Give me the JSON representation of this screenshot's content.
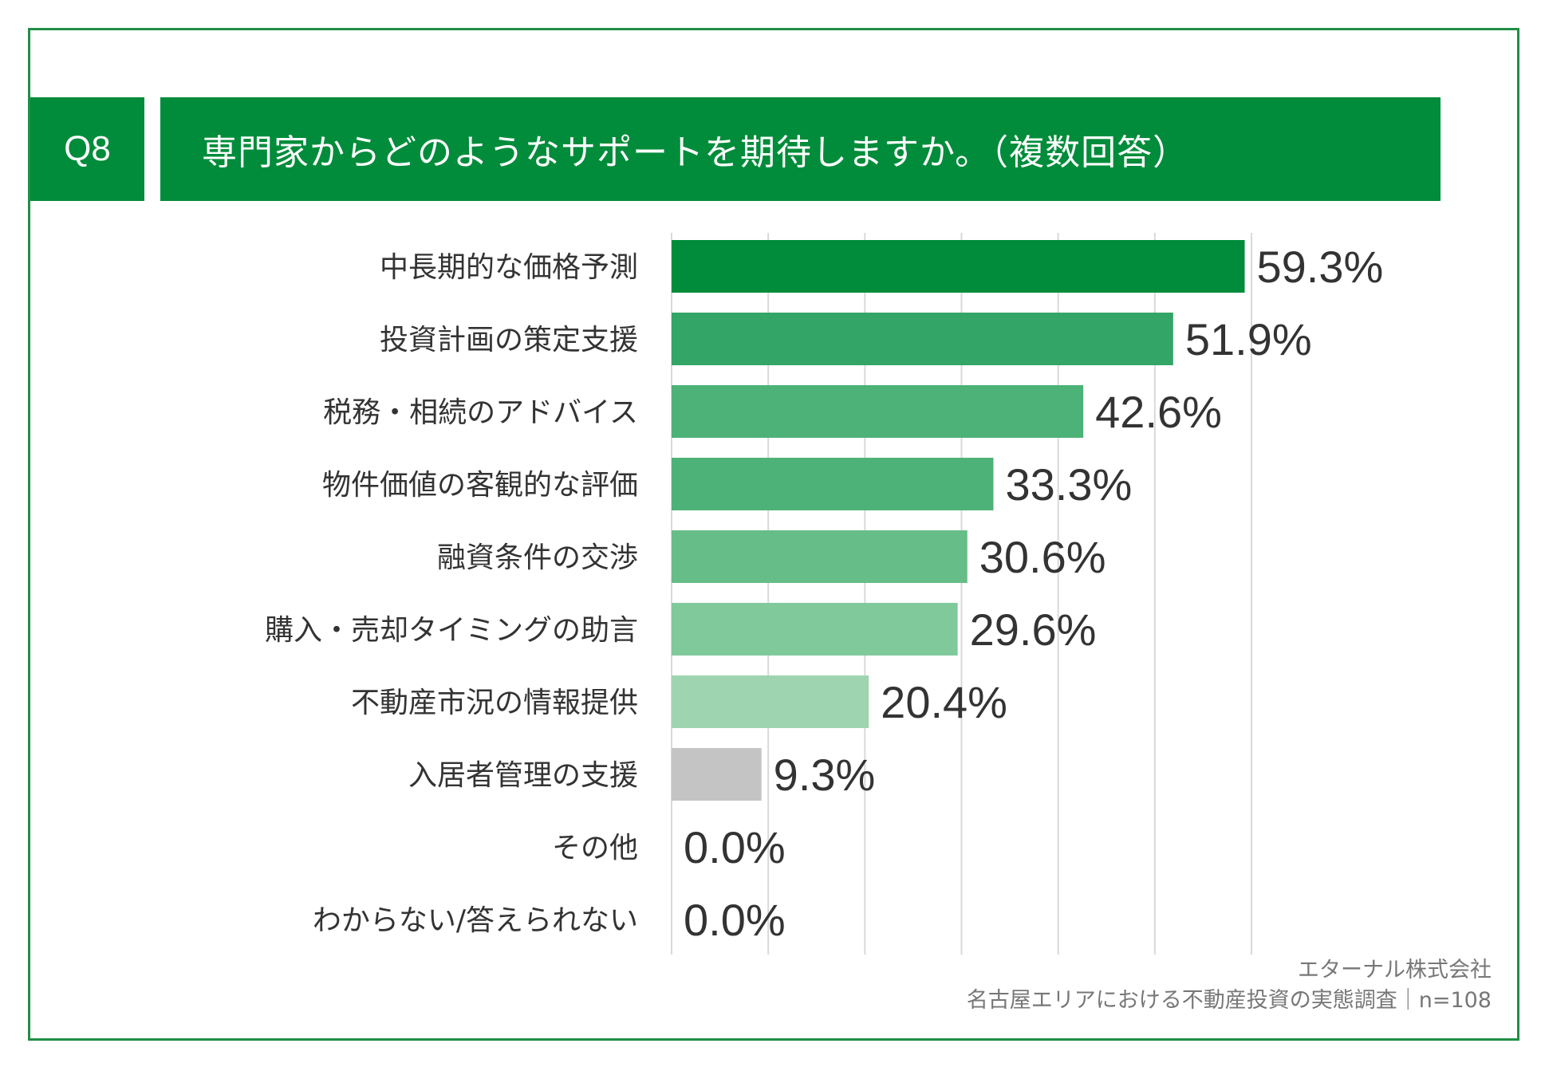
{
  "question": {
    "number": "Q8",
    "text": "専門家からどのようなサポートを期待しますか。（複数回答）"
  },
  "colors": {
    "brand": "#008c3a",
    "frame": "#1f8f45"
  },
  "chart_data": {
    "type": "bar",
    "orientation": "horizontal",
    "title": "専門家からどのようなサポートを期待しますか。（複数回答）",
    "categories": [
      "中長期的な価格予測",
      "投資計画の策定支援",
      "税務・相続のアドバイス",
      "物件価値の客観的な評価",
      "融資条件の交渉",
      "購入・売却タイミングの助言",
      "不動産市況の情報提供",
      "入居者管理の支援",
      "その他",
      "わからない/答えられない"
    ],
    "values": [
      59.3,
      51.9,
      42.6,
      33.3,
      30.6,
      29.6,
      20.4,
      9.3,
      0.0,
      0.0
    ],
    "value_labels": [
      "59.3%",
      "51.9%",
      "42.6%",
      "33.3%",
      "30.6%",
      "29.6%",
      "20.4%",
      "9.3%",
      "0.0%",
      "0.0%"
    ],
    "bar_colors": [
      "#008c3a",
      "#33a566",
      "#4db277",
      "#4db277",
      "#66bd88",
      "#80c99b",
      "#9ed4b0",
      "#c4c4c4",
      "#c4c4c4",
      "#c4c4c4"
    ],
    "xlim": [
      0,
      60
    ],
    "grid": true,
    "xlabel": "",
    "ylabel": ""
  },
  "source": {
    "company": "エターナル株式会社",
    "survey": "名古屋エリアにおける不動産投資の実態調査｜n=108"
  }
}
